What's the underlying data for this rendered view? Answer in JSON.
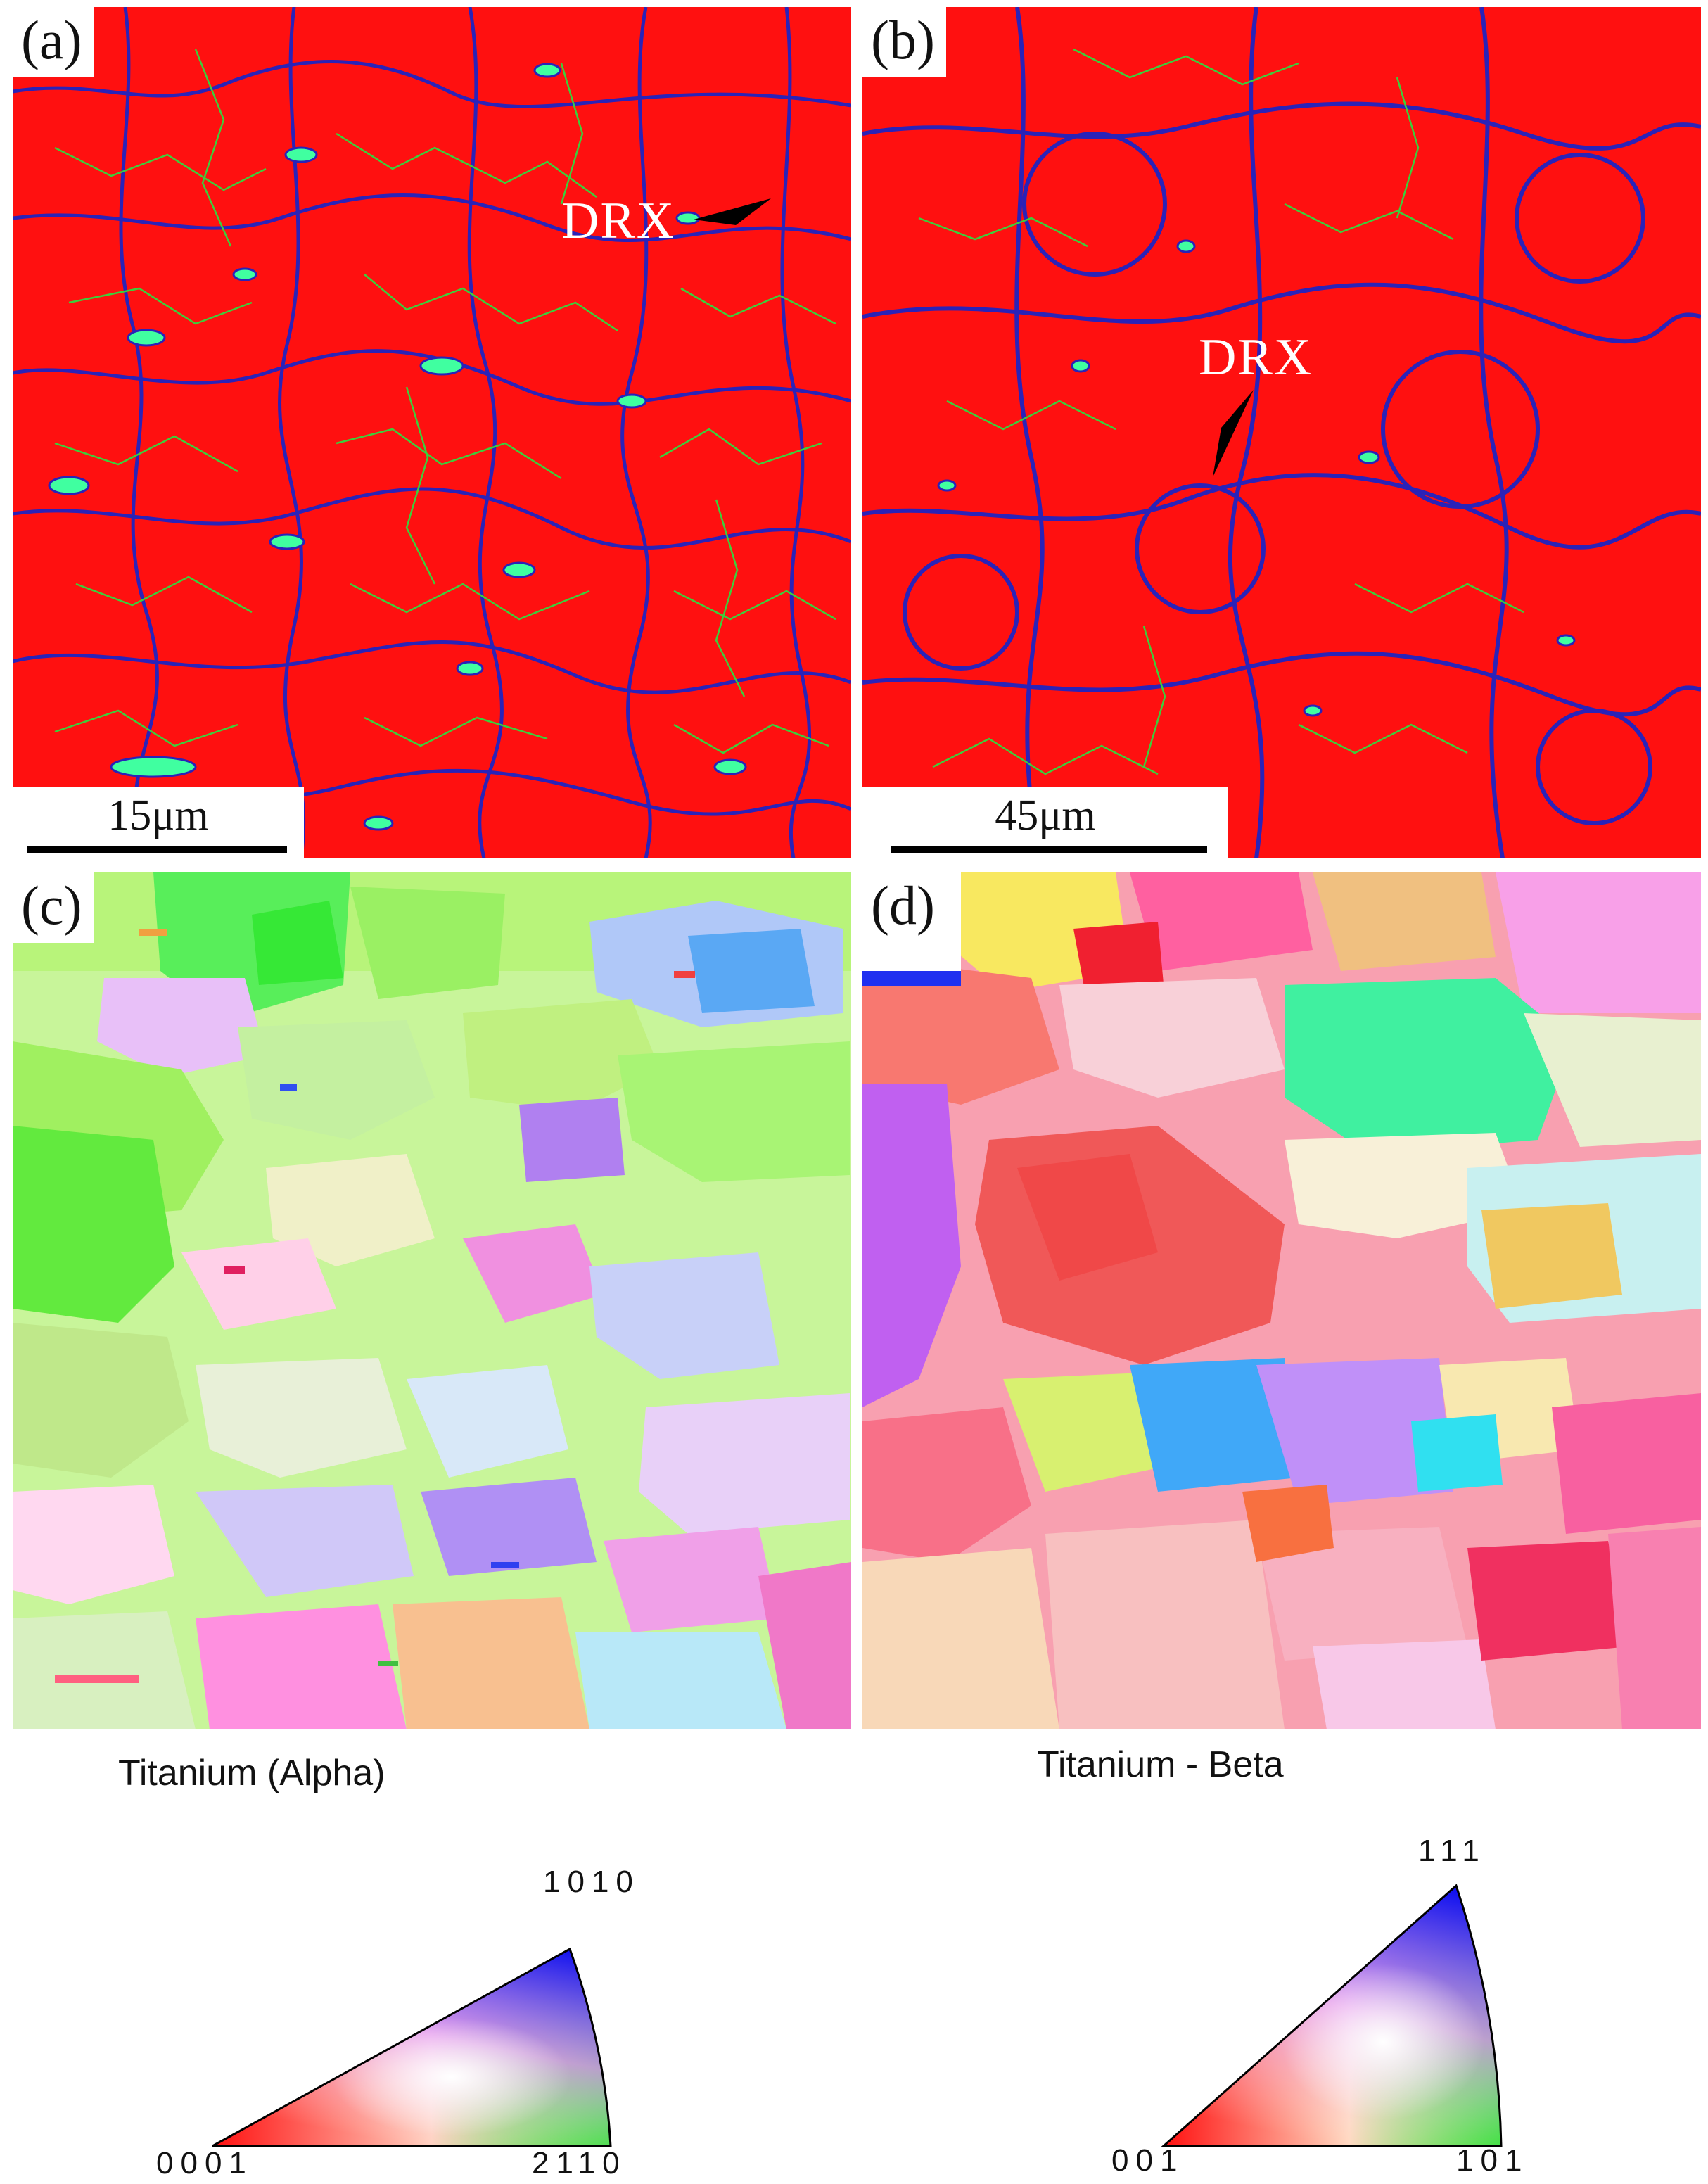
{
  "panels": {
    "a": {
      "label": "(a)",
      "scale": "15μm",
      "annotation": "DRX"
    },
    "b": {
      "label": "(b)",
      "scale": "45μm",
      "annotation": "DRX"
    },
    "c": {
      "label": "(c)"
    },
    "d": {
      "label": "(d)"
    }
  },
  "legends": {
    "alpha": {
      "title": "Titanium (Alpha)",
      "corner_top": "1010",
      "corner_left": "0001",
      "corner_right": "2110"
    },
    "beta": {
      "title": "Titanium - Beta",
      "corner_top": "111",
      "corner_left": "001",
      "corner_right": "101"
    }
  },
  "colors": {
    "alpha_phase_map": "#ff1010",
    "high_angle_boundary": "#2020c0",
    "low_angle_boundary": "#40d040",
    "beta_grains": "#40ffa0"
  }
}
